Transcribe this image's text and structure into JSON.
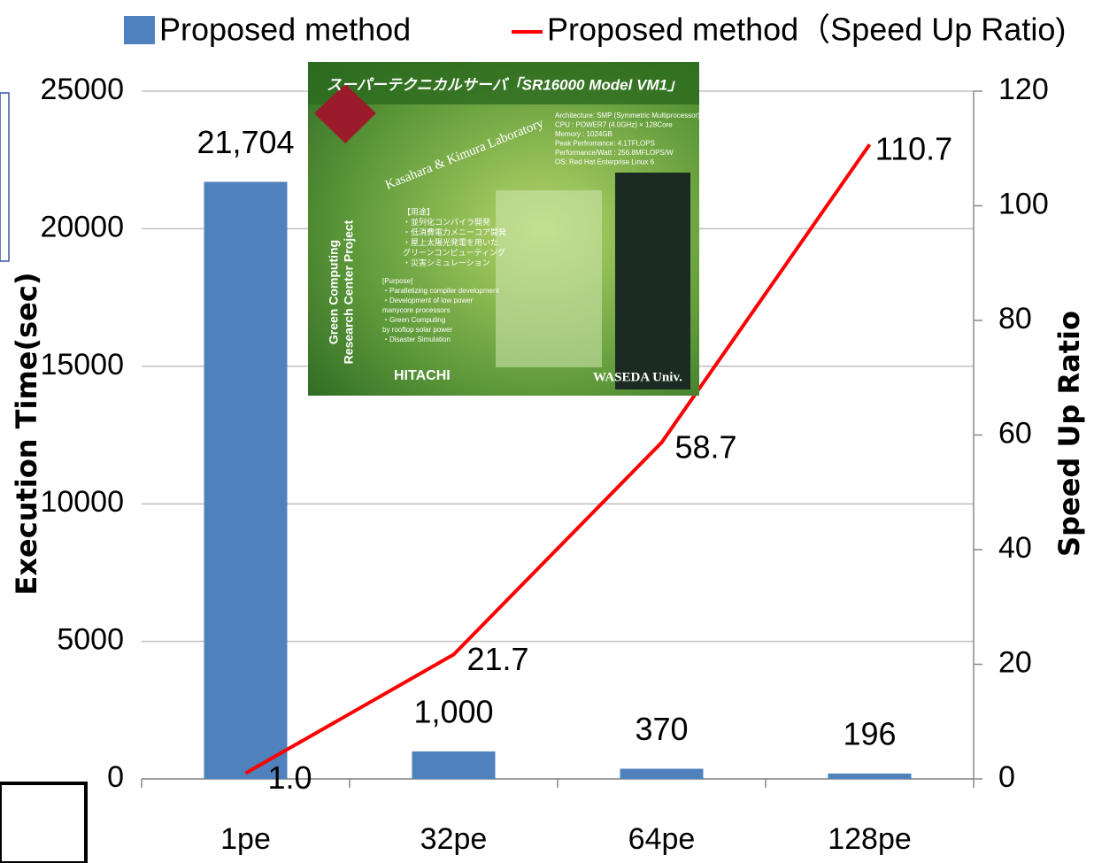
{
  "chart_data": {
    "type": "bar",
    "categories": [
      "1pe",
      "32pe",
      "64pe",
      "128pe"
    ],
    "series": [
      {
        "name": "Proposed method",
        "type": "bar",
        "color": "#4f81bd",
        "values": [
          21704,
          1000,
          370,
          196
        ],
        "value_labels": [
          "21,704",
          "1,000",
          "370",
          "196"
        ]
      },
      {
        "name": "Proposed method（Speed Up Ratio)",
        "type": "line",
        "axis": "y2",
        "color": "#ff0000",
        "values": [
          1.0,
          21.7,
          58.7,
          110.7
        ],
        "value_labels": [
          "1.0",
          "21.7",
          "58.7",
          "110.7"
        ]
      }
    ],
    "y_label": "Execution Time(sec)",
    "y2_label": "Speed Up Ratio",
    "ylim": [
      0,
      25000
    ],
    "yticks": [
      0,
      5000,
      10000,
      15000,
      20000,
      25000
    ],
    "y2lim": [
      0,
      120
    ],
    "y2ticks": [
      0,
      20,
      40,
      60,
      80,
      100,
      120
    ],
    "grid": true,
    "legend": "top"
  },
  "inset": {
    "title": "スーパーテクニカルサーバ「SR16000 Model VM1」",
    "lab": "Kasahara & Kimura Laboratory",
    "project": [
      "Green Computing",
      "Research Center Project"
    ],
    "specs": [
      "Architecture: SMP (Symmetric Multiprocessor)",
      "CPU : POWER7 (4.0GHz) × 128Core",
      "Memory : 1024GB",
      "Peak Perfromance: 4.1TFLOPS",
      "Performance/Watt : 256.8MFLOPS/W",
      "OS: Red Hat Enterprise Linux 6"
    ],
    "uses_ja": [
      "【用途】",
      "・並列化コンパイラ開発",
      "・低消費電力メニーコア開発",
      "・屋上太陽光発電を用いた",
      "グリーンコンピューティング",
      "・災害シミュレーション"
    ],
    "uses_en": [
      "[Purpose]",
      "・Parallelizing compiler development",
      "・Development of low power",
      "manycore processors",
      "・Green Computing",
      "by rooftop solar power",
      "・Disaster Simulation"
    ],
    "maker": "HITACHI",
    "university": "WASEDA Univ."
  }
}
